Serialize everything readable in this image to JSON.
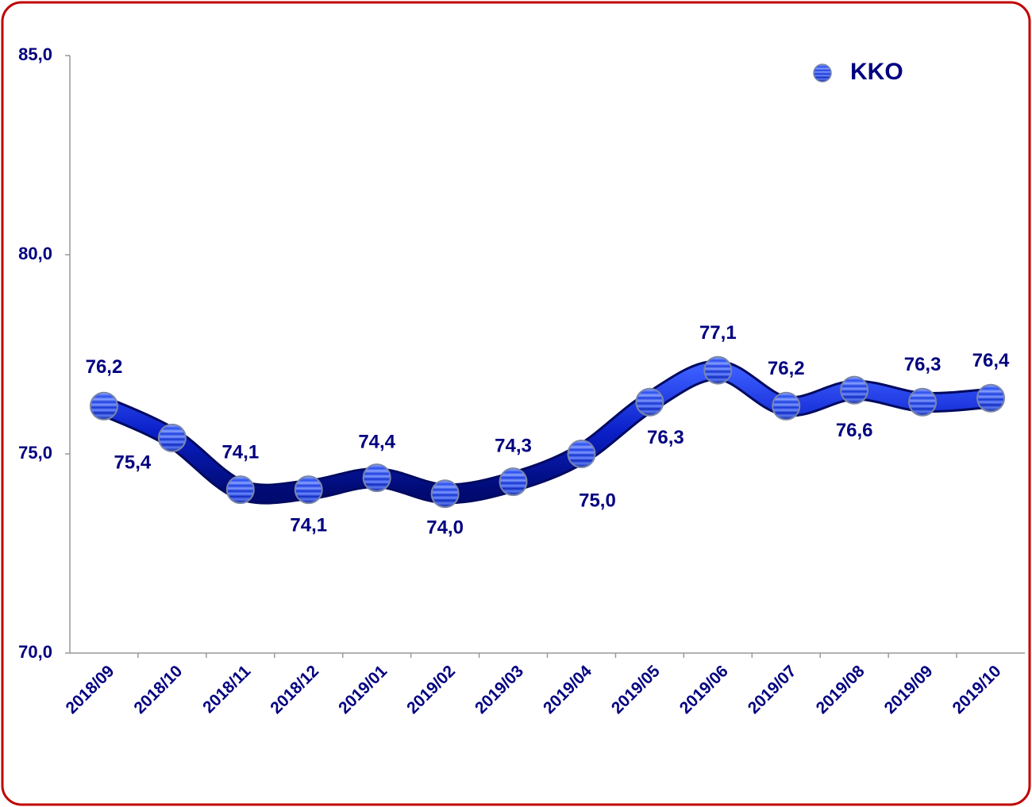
{
  "chart_data": {
    "type": "line",
    "categories": [
      "2018/09",
      "2018/10",
      "2018/11",
      "2018/12",
      "2019/01",
      "2019/02",
      "2019/03",
      "2019/04",
      "2019/05",
      "2019/06",
      "2019/07",
      "2019/08",
      "2019/09",
      "2019/10"
    ],
    "series": [
      {
        "name": "KKO",
        "color": "#1a2fd0",
        "values": [
          76.2,
          75.4,
          74.1,
          74.1,
          74.4,
          74.0,
          74.3,
          75.0,
          76.3,
          77.1,
          76.2,
          76.6,
          76.3,
          76.4
        ],
        "value_labels": [
          "76,2",
          "75,4",
          "74,1",
          "74,1",
          "74,4",
          "74,0",
          "74,3",
          "75,0",
          "76,3",
          "77,1",
          "76,2",
          "76,6",
          "76,3",
          "76,4"
        ]
      }
    ],
    "ylim": [
      70,
      85
    ],
    "yticks": [
      {
        "value": 70,
        "label": "70,0"
      },
      {
        "value": 75,
        "label": "75,0"
      },
      {
        "value": 80,
        "label": "80,0"
      },
      {
        "value": 85,
        "label": "85,0"
      }
    ],
    "grid": false,
    "legend": "top-right"
  }
}
